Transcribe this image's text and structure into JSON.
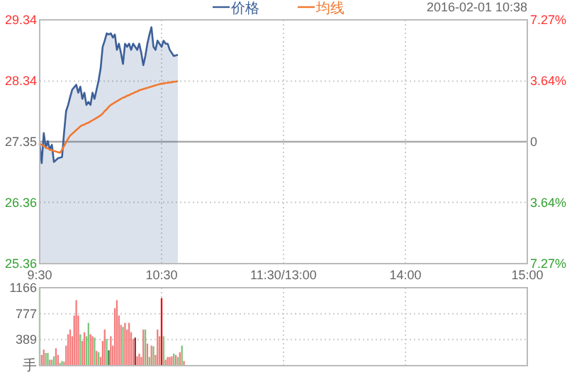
{
  "chart_data": [
    {
      "type": "line",
      "legend": "top",
      "grid": true,
      "categories": [
        "9:30",
        null,
        null,
        null,
        null,
        null,
        null,
        null,
        null,
        null,
        null,
        null,
        null,
        null,
        null,
        null,
        null,
        null,
        null,
        null,
        null,
        null,
        null,
        null,
        null,
        null,
        null,
        null,
        null,
        null,
        null,
        null,
        null,
        null,
        null,
        null,
        null,
        null,
        null,
        null,
        null,
        null,
        null,
        null,
        null,
        null,
        null,
        null,
        null,
        null,
        null,
        null,
        null,
        null,
        null,
        null,
        null,
        null,
        null,
        null,
        "10:30",
        null,
        null,
        null,
        null,
        null,
        null,
        null,
        null,
        null,
        null,
        null,
        null,
        null,
        null,
        null,
        null,
        null,
        null,
        null,
        null,
        null,
        null,
        null,
        null,
        null,
        null,
        null,
        null,
        null,
        null,
        null,
        null,
        null,
        null,
        null,
        null,
        null,
        null,
        null,
        null,
        null,
        null,
        null,
        null,
        null,
        null,
        null,
        null,
        null,
        null,
        null,
        null,
        null,
        null,
        null,
        null,
        null,
        null,
        null,
        "11:30/13:00",
        null,
        null,
        null,
        null,
        null,
        null,
        null,
        null,
        null,
        null,
        null,
        null,
        null,
        null,
        null,
        null,
        null,
        null,
        null,
        null,
        null,
        null,
        null,
        null,
        null,
        null,
        null,
        null,
        null,
        null,
        null,
        null,
        null,
        null,
        null,
        null,
        null,
        null,
        null,
        null,
        null,
        null,
        null,
        null,
        null,
        null,
        null,
        null,
        null,
        null,
        null,
        null,
        null,
        null,
        null,
        null,
        null,
        null,
        null,
        "14:00",
        null,
        null,
        null,
        null,
        null,
        null,
        null,
        null,
        null,
        null,
        null,
        null,
        null,
        null,
        null,
        null,
        null,
        null,
        null,
        null,
        null,
        null,
        null,
        null,
        null,
        null,
        null,
        null,
        null,
        null,
        null,
        null,
        null,
        null,
        null,
        null,
        null,
        null,
        null,
        null,
        null,
        null,
        null,
        null,
        null,
        null,
        null,
        null,
        null,
        null,
        null,
        null,
        null,
        null,
        null,
        null,
        null,
        null,
        null,
        "15:00"
      ],
      "series": [
        {
          "name": "价格",
          "type": "area",
          "color": "#3c5f98",
          "values": [
            27.32,
            27.0,
            27.49,
            27.25,
            27.36,
            27.22,
            27.3,
            27.02,
            27.05,
            27.08,
            27.09,
            27.1,
            27.5,
            27.85,
            27.95,
            28.08,
            28.2,
            28.24,
            28.28,
            28.15,
            28.25,
            28.05,
            28.15,
            27.95,
            28.0,
            27.95,
            28.15,
            28.05,
            28.2,
            28.35,
            28.55,
            28.9,
            29.0,
            29.12,
            29.1,
            29.12,
            29.05,
            29.1,
            28.85,
            28.95,
            28.8,
            28.62,
            28.95,
            28.9,
            28.95,
            28.85,
            28.95,
            28.9,
            28.85,
            28.95,
            28.8,
            28.6,
            28.75,
            28.95,
            29.1,
            29.22,
            28.9,
            28.85,
            29.0,
            28.95,
            28.9,
            29.0,
            28.95,
            28.95,
            28.85,
            28.8,
            28.75,
            28.76,
            28.77,
            null,
            null,
            null,
            null,
            null,
            null,
            null,
            null,
            null,
            null,
            null,
            null,
            null,
            null,
            null,
            null,
            null,
            null,
            null,
            null,
            null,
            null,
            null,
            null,
            null,
            null,
            null,
            null,
            null,
            null,
            null,
            null,
            null,
            null,
            null,
            null,
            null,
            null,
            null,
            null,
            null,
            null,
            null,
            null,
            null,
            null,
            null,
            null,
            null,
            null,
            null,
            null,
            null,
            null,
            null,
            null,
            null,
            null,
            null,
            null,
            null,
            null,
            null,
            null,
            null,
            null,
            null,
            null,
            null,
            null,
            null,
            null,
            null,
            null,
            null,
            null,
            null,
            null,
            null,
            null,
            null,
            null,
            null,
            null,
            null,
            null,
            null,
            null,
            null,
            null,
            null,
            null,
            null,
            null,
            null,
            null,
            null,
            null,
            null,
            null,
            null,
            null,
            null,
            null,
            null,
            null,
            null,
            null,
            null,
            null,
            null,
            null,
            null,
            null,
            null,
            null,
            null,
            null,
            null,
            null,
            null,
            null,
            null,
            null,
            null,
            null,
            null,
            null,
            null,
            null,
            null,
            null,
            null,
            null,
            null,
            null,
            null,
            null,
            null,
            null,
            null,
            null,
            null,
            null,
            null,
            null,
            null,
            null,
            null,
            null,
            null,
            null,
            null,
            null,
            null,
            null,
            null,
            null,
            null,
            null,
            null,
            null,
            null,
            null,
            null,
            null,
            null,
            null,
            null,
            null,
            null,
            null
          ]
        },
        {
          "name": "均线",
          "type": "line",
          "color": "#f07830",
          "values": [
            27.32,
            27.3,
            27.28,
            27.26,
            27.24,
            27.22,
            27.21,
            27.2,
            27.19,
            27.18,
            27.17,
            27.22,
            27.28,
            27.34,
            27.4,
            27.45,
            27.48,
            27.51,
            27.54,
            27.57,
            27.6,
            27.62,
            27.63,
            27.65,
            27.66,
            27.68,
            27.7,
            27.72,
            27.74,
            27.76,
            27.78,
            27.81,
            27.85,
            27.88,
            27.92,
            27.95,
            27.97,
            27.99,
            28.01,
            28.03,
            28.05,
            28.07,
            28.08,
            28.1,
            28.11,
            28.13,
            28.14,
            28.16,
            28.17,
            28.19,
            28.2,
            28.21,
            28.22,
            28.23,
            28.24,
            28.25,
            28.26,
            28.27,
            28.28,
            28.29,
            28.3,
            28.3,
            28.31,
            28.31,
            28.32,
            28.32,
            28.33,
            28.33,
            28.34,
            null,
            null,
            null,
            null,
            null,
            null,
            null,
            null,
            null,
            null,
            null,
            null,
            null,
            null,
            null,
            null,
            null,
            null,
            null,
            null,
            null,
            null,
            null,
            null,
            null,
            null,
            null,
            null,
            null,
            null,
            null,
            null,
            null,
            null,
            null,
            null,
            null,
            null,
            null,
            null,
            null,
            null,
            null,
            null,
            null,
            null,
            null,
            null,
            null,
            null,
            null,
            null,
            null,
            null,
            null,
            null,
            null,
            null,
            null,
            null,
            null,
            null,
            null,
            null,
            null,
            null,
            null,
            null,
            null,
            null,
            null,
            null,
            null,
            null,
            null,
            null,
            null,
            null,
            null,
            null,
            null,
            null,
            null,
            null,
            null,
            null,
            null,
            null,
            null,
            null,
            null,
            null,
            null,
            null,
            null,
            null,
            null,
            null,
            null,
            null,
            null,
            null,
            null,
            null,
            null,
            null,
            null,
            null,
            null,
            null,
            null,
            null,
            null,
            null,
            null,
            null,
            null,
            null,
            null,
            null,
            null,
            null,
            null,
            null,
            null,
            null,
            null,
            null,
            null,
            null,
            null,
            null,
            null,
            null,
            null,
            null,
            null,
            null,
            null,
            null,
            null,
            null,
            null,
            null,
            null,
            null,
            null,
            null,
            null,
            null,
            null,
            null,
            null,
            null,
            null,
            null,
            null,
            null,
            null,
            null,
            null,
            null,
            null,
            null,
            null,
            null,
            null,
            null,
            null,
            null,
            null,
            null
          ]
        }
      ],
      "ylim": [
        25.36,
        29.34
      ],
      "yticks": [
        25.36,
        26.36,
        27.35,
        28.34,
        29.34
      ],
      "y2lim": [
        -7.27,
        7.27
      ],
      "y2ticks": [
        {
          "value": -7.27,
          "label": "7.27%"
        },
        {
          "value": -3.64,
          "label": "3.64%"
        },
        {
          "value": 0,
          "label": "0"
        },
        {
          "value": 3.64,
          "label": "3.64%"
        },
        {
          "value": 7.27,
          "label": "7.27%"
        }
      ],
      "ref_lines": [
        {
          "axis": "y",
          "value": 27.35,
          "color": "#aaaaaa"
        }
      ],
      "annotations": [
        "2016-02-01 10:38"
      ]
    },
    {
      "type": "bar",
      "grid": true,
      "tick_labels": "y",
      "categories": [
        null,
        null,
        null,
        null,
        null,
        null,
        null,
        null,
        null,
        null,
        null,
        null,
        null,
        null,
        null,
        null,
        null,
        null,
        null,
        null,
        null,
        null,
        null,
        null,
        null,
        null,
        null,
        null,
        null,
        null,
        null,
        null,
        null,
        null,
        null,
        null,
        null,
        null,
        null,
        null,
        null,
        null,
        null,
        null,
        null,
        null,
        null,
        null,
        null,
        null,
        null,
        null,
        null,
        null,
        null,
        null,
        null,
        null,
        null,
        null,
        null,
        null,
        null,
        null,
        null,
        null,
        null,
        null,
        null,
        null,
        null,
        null,
        null,
        null,
        null,
        null,
        null,
        null,
        null,
        null,
        null,
        null,
        null,
        null,
        null,
        null,
        null,
        null,
        null,
        null,
        null,
        null,
        null,
        null,
        null,
        null,
        null,
        null,
        null,
        null,
        null,
        null,
        null,
        null,
        null,
        null,
        null,
        null,
        null,
        null,
        null,
        null,
        null,
        null,
        null,
        null,
        null,
        null,
        null,
        null,
        null,
        null,
        null,
        null,
        null,
        null,
        null,
        null,
        null,
        null,
        null,
        null,
        null,
        null,
        null,
        null,
        null,
        null,
        null,
        null,
        null,
        null,
        null,
        null,
        null,
        null,
        null,
        null,
        null,
        null,
        null,
        null,
        null,
        null,
        null,
        null,
        null,
        null,
        null,
        null,
        null,
        null,
        null,
        null,
        null,
        null,
        null,
        null,
        null,
        null,
        null,
        null,
        null,
        null,
        null,
        null,
        null,
        null,
        null,
        null,
        null,
        null,
        null,
        null,
        null,
        null,
        null,
        null,
        null,
        null,
        null,
        null,
        null,
        null,
        null,
        null,
        null,
        null,
        null,
        null,
        null,
        null,
        null,
        null,
        null,
        null,
        null,
        null,
        null,
        null,
        null,
        null,
        null,
        null,
        null,
        null,
        null,
        null,
        null,
        null,
        null,
        null,
        null,
        null,
        null,
        null,
        null,
        null,
        null,
        null,
        null,
        null,
        null,
        null,
        null,
        null,
        null,
        null,
        null,
        null,
        null
      ],
      "values": [
        1160,
        160,
        240,
        190,
        190,
        90,
        90,
        140,
        260,
        160,
        40,
        70,
        60,
        300,
        470,
        540,
        440,
        750,
        980,
        750,
        470,
        370,
        500,
        440,
        640,
        470,
        440,
        420,
        220,
        200,
        130,
        370,
        540,
        400,
        230,
        440,
        300,
        860,
        980,
        750,
        610,
        580,
        640,
        540,
        640,
        500,
        400,
        420,
        140,
        180,
        130,
        540,
        540,
        330,
        130,
        300,
        290,
        160,
        540,
        440,
        1010,
        440,
        90,
        130,
        130,
        140,
        180,
        160,
        130,
        200,
        300,
        70,
        null,
        null,
        null,
        null,
        null,
        null,
        null,
        null,
        null,
        null,
        null,
        null,
        null,
        null,
        null,
        null,
        null,
        null,
        null,
        null,
        null,
        null,
        null,
        null,
        null,
        null,
        null,
        null,
        null,
        null,
        null,
        null,
        null,
        null,
        null,
        null,
        null,
        null,
        null,
        null,
        null,
        null,
        null,
        null,
        null,
        null,
        null,
        null,
        null,
        null,
        null,
        null,
        null,
        null,
        null,
        null,
        null,
        null,
        null,
        null,
        null,
        null,
        null,
        null,
        null,
        null,
        null,
        null,
        null,
        null,
        null,
        null,
        null,
        null,
        null,
        null,
        null,
        null,
        null,
        null,
        null,
        null,
        null,
        null,
        null,
        null,
        null,
        null,
        null,
        null,
        null,
        null,
        null,
        null,
        null,
        null,
        null,
        null,
        null,
        null,
        null,
        null,
        null,
        null,
        null,
        null,
        null,
        null,
        null,
        null,
        null,
        null,
        null,
        null,
        null,
        null,
        null,
        null,
        null,
        null,
        null,
        null,
        null,
        null,
        null,
        null,
        null,
        null,
        null,
        null,
        null,
        null,
        null,
        null,
        null,
        null,
        null,
        null,
        null,
        null,
        null,
        null,
        null,
        null,
        null,
        null,
        null,
        null,
        null,
        null,
        null,
        null,
        null,
        null,
        null,
        null,
        null,
        null,
        null,
        null,
        null,
        null,
        null,
        null,
        null,
        null,
        null,
        null,
        null
      ],
      "colors": [
        "#7cc47c",
        "#f47c7c",
        "#f47c7c",
        "#7cc47c",
        "#7cc47c",
        "#f47c7c",
        "#7cc47c",
        "#7cc47c",
        "#f47c7c",
        "#f47c7c",
        "#7cc47c",
        "#7cc47c",
        "#f47c7c",
        "#f47c7c",
        "#f47c7c",
        "#f47c7c",
        "#f47c7c",
        "#f47c7c",
        "#f47c7c",
        "#f47c7c",
        "#7cc47c",
        "#f47c7c",
        "#f47c7c",
        "#7cc47c",
        "#7cc47c",
        "#f47c7c",
        "#f47c7c",
        "#7cc47c",
        "#f47c7c",
        "#7cc47c",
        "#f47c7c",
        "#f47c7c",
        "#f47c7c",
        "#7cc47c",
        "#3a7a3a",
        "#f47c7c",
        "#f47c7c",
        "#f47c7c",
        "#f47c7c",
        "#f47c7c",
        "#f47c7c",
        "#7cc47c",
        "#f47c7c",
        "#f47c7c",
        "#f47c7c",
        "#f47c7c",
        "#f47c7c",
        "#a02020",
        "#f47c7c",
        "#f47c7c",
        "#f47c7c",
        "#f47c7c",
        "#7cc47c",
        "#f47c7c",
        "#7cc47c",
        "#f47c7c",
        "#7cc47c",
        "#f47c7c",
        "#f47c7c",
        "#f47c7c",
        "#f00000",
        "#7cc47c",
        "#f47c7c",
        "#f47c7c",
        "#f47c7c",
        "#f47c7c",
        "#7cc47c",
        "#f47c7c",
        "#7cc47c",
        "#f47c7c",
        "#7cc47c",
        "#f47c7c",
        null,
        null,
        null,
        null,
        null,
        null,
        null,
        null,
        null,
        null,
        null,
        null,
        null,
        null,
        null,
        null,
        null,
        null,
        null,
        null,
        null,
        null,
        null,
        null,
        null,
        null,
        null,
        null,
        null,
        null,
        null,
        null,
        null,
        null,
        null,
        null,
        null,
        null,
        null,
        null,
        null,
        null,
        null,
        null,
        null,
        null,
        null,
        null,
        null,
        null,
        null,
        null,
        null,
        null,
        null,
        null,
        null,
        null,
        null,
        null,
        null,
        null,
        null,
        null,
        null,
        null,
        null,
        null,
        null,
        null,
        null,
        null,
        null,
        null,
        null,
        null,
        null,
        null,
        null,
        null,
        null,
        null,
        null,
        null,
        null,
        null,
        null,
        null,
        null,
        null,
        null,
        null,
        null,
        null,
        null,
        null,
        null,
        null,
        null,
        null,
        null,
        null,
        null,
        null,
        null,
        null,
        null,
        null,
        null,
        null,
        null,
        null,
        null,
        null,
        null,
        null,
        null,
        null,
        null,
        null,
        null,
        null,
        null,
        null,
        null,
        null,
        null,
        null,
        null,
        null,
        null,
        null,
        null,
        null,
        null,
        null,
        null,
        null,
        null,
        null,
        null,
        null,
        null,
        null,
        null,
        null,
        null,
        null,
        null,
        null,
        null,
        null,
        null,
        null,
        null,
        null,
        null,
        null,
        null,
        null,
        null,
        null,
        null,
        null,
        null,
        null,
        null,
        null,
        null
      ],
      "ylim": [
        0,
        1166
      ],
      "yticks": [
        {
          "value": 0,
          "label": "手"
        },
        389,
        777,
        1166
      ]
    }
  ]
}
